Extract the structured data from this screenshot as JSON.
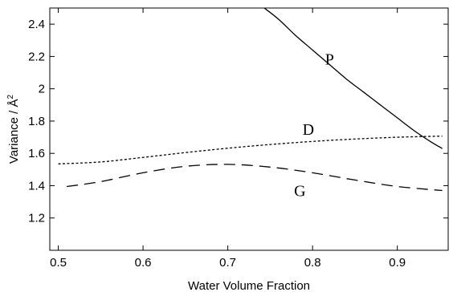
{
  "chart_data": {
    "type": "line",
    "title": "",
    "xlabel": "Water Volume Fraction",
    "ylabel_text": "Variance / Å",
    "ylabel_sup": "2",
    "xlim": [
      0.49,
      0.96
    ],
    "ylim": [
      1.0,
      2.5
    ],
    "xticks": [
      0.5,
      0.6,
      0.7,
      0.8,
      0.9
    ],
    "xtick_labels": [
      "0.5",
      "0.6",
      "0.7",
      "0.8",
      "0.9"
    ],
    "yticks": [
      1.2,
      1.4,
      1.6,
      1.8,
      2.0,
      2.2,
      2.4
    ],
    "ytick_labels": [
      "1.2",
      "1.4",
      "1.6",
      "1.8",
      "2",
      "2.2",
      "2.4"
    ],
    "grid": false,
    "series": [
      {
        "name": "P",
        "style": "solid",
        "x": [
          0.743,
          0.76,
          0.78,
          0.8,
          0.82,
          0.84,
          0.86,
          0.88,
          0.9,
          0.92,
          0.94,
          0.953
        ],
        "y": [
          2.5,
          2.43,
          2.33,
          2.24,
          2.15,
          2.06,
          1.98,
          1.9,
          1.82,
          1.74,
          1.67,
          1.63
        ]
      },
      {
        "name": "D",
        "style": "dotted",
        "x": [
          0.5,
          0.55,
          0.6,
          0.65,
          0.7,
          0.75,
          0.8,
          0.85,
          0.9,
          0.953
        ],
        "y": [
          1.535,
          1.547,
          1.575,
          1.605,
          1.632,
          1.655,
          1.674,
          1.689,
          1.7,
          1.707
        ]
      },
      {
        "name": "G",
        "style": "dashed",
        "x": [
          0.51,
          0.55,
          0.6,
          0.65,
          0.7,
          0.75,
          0.8,
          0.85,
          0.9,
          0.953
        ],
        "y": [
          1.395,
          1.425,
          1.48,
          1.52,
          1.532,
          1.515,
          1.48,
          1.435,
          1.395,
          1.37
        ]
      }
    ],
    "series_labels": [
      {
        "text": "P",
        "x": 0.82,
        "y": 2.15
      },
      {
        "text": "D",
        "x": 0.795,
        "y": 1.715
      },
      {
        "text": "G",
        "x": 0.785,
        "y": 1.335
      }
    ]
  }
}
